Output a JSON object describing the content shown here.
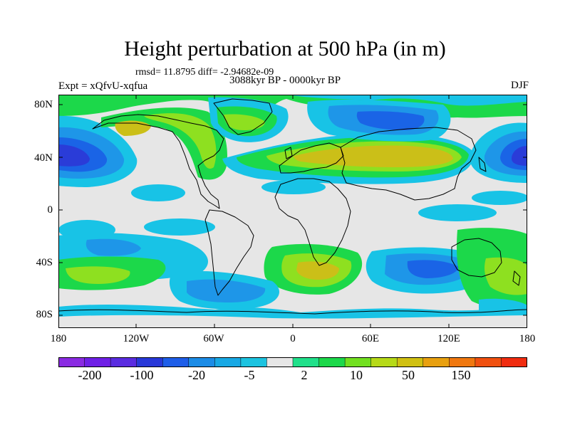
{
  "title": "Height perturbation at 500 hPa (in m)",
  "stats": "rmsd= 11.8795 diff= -2.94682e-09",
  "subtitle": "3088kyr BP - 0000kyr BP",
  "experiment": "Expt = xQfvU-xqfua",
  "season": "DJF",
  "y_axis_labels": [
    "80N",
    "40N",
    "0",
    "40S",
    "80S"
  ],
  "x_axis_labels": [
    "180",
    "120W",
    "60W",
    "0",
    "60E",
    "120E",
    "180"
  ],
  "colorbar": {
    "labels": [
      "-200",
      "-100",
      "-20",
      "-5",
      "2",
      "10",
      "50",
      "150"
    ],
    "colors": [
      "#8a2be2",
      "#6f20e6",
      "#5a2ce0",
      "#2838d8",
      "#1e5ee8",
      "#1c8ce6",
      "#18a8e4",
      "#1cc3e0",
      "#e6e6e6",
      "#20e08a",
      "#1cd84a",
      "#72e020",
      "#b6da18",
      "#d0c012",
      "#e8a010",
      "#f07810",
      "#f05010",
      "#f02c10"
    ]
  },
  "map_colors": {
    "neutral": "#e6e6e6",
    "cyan": "#18c3e6",
    "light_blue": "#1e96e8",
    "mid_blue": "#1a64e6",
    "deep_blue": "#2a3cd8",
    "sea_green": "#20e08a",
    "green": "#1cd84a",
    "yellow_green": "#8ee020",
    "mustard": "#cbbf18"
  }
}
